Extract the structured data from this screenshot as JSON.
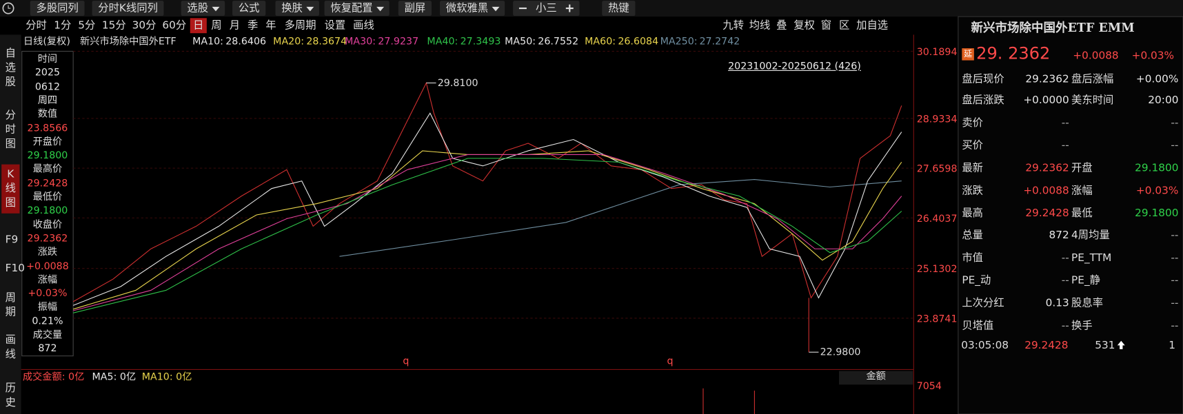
{
  "toolbar": {
    "items": [
      {
        "label": "多股同列"
      },
      {
        "label": "分时K线同列"
      },
      {
        "label": "选股",
        "menu": true
      },
      {
        "label": "公式"
      },
      {
        "label": "换肤",
        "menu": true
      },
      {
        "label": "恢复配置",
        "menu": true
      },
      {
        "label": "副屏"
      },
      {
        "label": "微软雅黑",
        "menu": true
      },
      {
        "label": "小三",
        "stepper": true
      },
      {
        "label": "热键"
      }
    ]
  },
  "period_tabs": {
    "items": [
      "分时",
      "1分",
      "5分",
      "15分",
      "30分",
      "60分",
      "日",
      "周",
      "月",
      "季",
      "年",
      "多周期",
      "设置",
      "画线"
    ],
    "active_index": 6
  },
  "chart_tabs": [
    "九转",
    "均线",
    "叠",
    "复权",
    "窗",
    "区",
    "加自选"
  ],
  "left_nav": {
    "items": [
      "自选股",
      "分时图",
      "K线图",
      "F9",
      "F10",
      "周期",
      "画线",
      "历史"
    ],
    "active_index": 2
  },
  "legend": {
    "title": "日线(复权)",
    "name": "新兴市场除中国外ETF",
    "items": [
      {
        "label": "MA10:",
        "value": "28.6406",
        "color": "#e8e8e8"
      },
      {
        "label": "MA20:",
        "value": "28.3674",
        "color": "#e8d44d"
      },
      {
        "label": "MA30:",
        "value": "27.9237",
        "color": "#e0409a"
      },
      {
        "label": "MA40:",
        "value": "27.3493",
        "color": "#2fc24a"
      },
      {
        "label": "MA50:",
        "value": "26.7552",
        "color": "#e8e8e8"
      },
      {
        "label": "MA60:",
        "value": "26.6084",
        "color": "#e8d44d"
      },
      {
        "label": "MA250:",
        "value": "27.2742",
        "color": "#6f8ea0"
      }
    ]
  },
  "range_label": "20231002-20250612 (426)",
  "price_axis": [
    "30.1894",
    "28.9334",
    "27.6598",
    "26.4037",
    "25.1302",
    "23.8741"
  ],
  "annotations": {
    "high": "29.8100",
    "low": "22.9800",
    "markers": [
      "q",
      "q"
    ]
  },
  "info_panel": [
    {
      "label": "时间",
      "values": [
        "2025",
        "0612",
        "周四"
      ],
      "color": "#e8e8e8"
    },
    {
      "label": "数值",
      "values": [
        "23.8566"
      ],
      "color": "#ff4a4a"
    },
    {
      "label": "开盘价",
      "values": [
        "29.1800"
      ],
      "color": "#2fd24a"
    },
    {
      "label": "最高价",
      "values": [
        "29.2428"
      ],
      "color": "#ff4a4a"
    },
    {
      "label": "最低价",
      "values": [
        "29.1800"
      ],
      "color": "#2fd24a"
    },
    {
      "label": "收盘价",
      "values": [
        "29.2362"
      ],
      "color": "#ff4a4a"
    },
    {
      "label": "涨跌",
      "values": [
        "+0.0088"
      ],
      "color": "#ff4a4a"
    },
    {
      "label": "涨幅",
      "values": [
        "+0.03%"
      ],
      "color": "#ff4a4a"
    },
    {
      "label": "振幅",
      "values": [
        "0.21%"
      ],
      "color": "#e8e8e8"
    },
    {
      "label": "成交量",
      "values": [
        "872"
      ],
      "color": "#e8e8e8"
    }
  ],
  "volume": {
    "legend": [
      {
        "text": "成交金额: 0亿",
        "color": "#ff4a4a"
      },
      {
        "text": "MA5: 0亿",
        "color": "#e8e8e8"
      },
      {
        "text": "MA10: 0亿",
        "color": "#e8d44d"
      }
    ],
    "selector": "金额",
    "axis": "7054"
  },
  "quote": {
    "title": "新兴市场除中国外ETF EMM",
    "badge": "延",
    "price": "29. 2362",
    "change": "+0.0088",
    "change_pct": "+0.03%",
    "rows": [
      [
        {
          "t": "盘后现价"
        },
        {
          "t": "29.2362",
          "c": "#e8e8e8"
        },
        {
          "t": "盘后涨幅"
        },
        {
          "t": "+0.00%",
          "c": "#e8e8e8"
        }
      ],
      [
        {
          "t": "盘后涨跌"
        },
        {
          "t": "+0.0000",
          "c": "#e8e8e8"
        },
        {
          "t": "美东时间"
        },
        {
          "t": "20:00",
          "c": "#e8e8e8"
        }
      ],
      [
        {
          "t": "卖价"
        },
        {
          "t": "--",
          "c": "#aaa"
        },
        {
          "t": ""
        },
        {
          "t": "--",
          "c": "#aaa"
        }
      ],
      [
        {
          "t": "买价"
        },
        {
          "t": "--",
          "c": "#aaa"
        },
        {
          "t": ""
        },
        {
          "t": "--",
          "c": "#aaa"
        }
      ],
      [
        {
          "t": "最新"
        },
        {
          "t": "29.2362",
          "c": "#ff4a4a"
        },
        {
          "t": "开盘"
        },
        {
          "t": "29.1800",
          "c": "#2fd24a"
        }
      ],
      [
        {
          "t": "涨跌"
        },
        {
          "t": "+0.0088",
          "c": "#ff4a4a"
        },
        {
          "t": "涨幅"
        },
        {
          "t": "+0.03%",
          "c": "#ff4a4a"
        }
      ],
      [
        {
          "t": "最高"
        },
        {
          "t": "29.2428",
          "c": "#ff4a4a"
        },
        {
          "t": "最低"
        },
        {
          "t": "29.1800",
          "c": "#2fd24a"
        }
      ],
      [
        {
          "t": "总量"
        },
        {
          "t": "872",
          "c": "#e8e8e8"
        },
        {
          "t": "4周均量"
        },
        {
          "t": "--",
          "c": "#aaa"
        }
      ],
      [
        {
          "t": "市值"
        },
        {
          "t": "--",
          "c": "#aaa"
        },
        {
          "t": "PE_TTM"
        },
        {
          "t": "--",
          "c": "#aaa"
        }
      ],
      [
        {
          "t": "PE_动"
        },
        {
          "t": "--",
          "c": "#aaa"
        },
        {
          "t": "PE_静"
        },
        {
          "t": "--",
          "c": "#aaa"
        }
      ],
      [
        {
          "t": "上次分红"
        },
        {
          "t": "0.13",
          "c": "#e8e8e8"
        },
        {
          "t": "股息率"
        },
        {
          "t": "--",
          "c": "#aaa"
        }
      ],
      [
        {
          "t": "贝塔值"
        },
        {
          "t": "--",
          "c": "#aaa"
        },
        {
          "t": "换手"
        },
        {
          "t": "--",
          "c": "#aaa"
        }
      ]
    ],
    "tick": [
      "03:05:08",
      "29.2428",
      "531",
      "1"
    ]
  }
}
